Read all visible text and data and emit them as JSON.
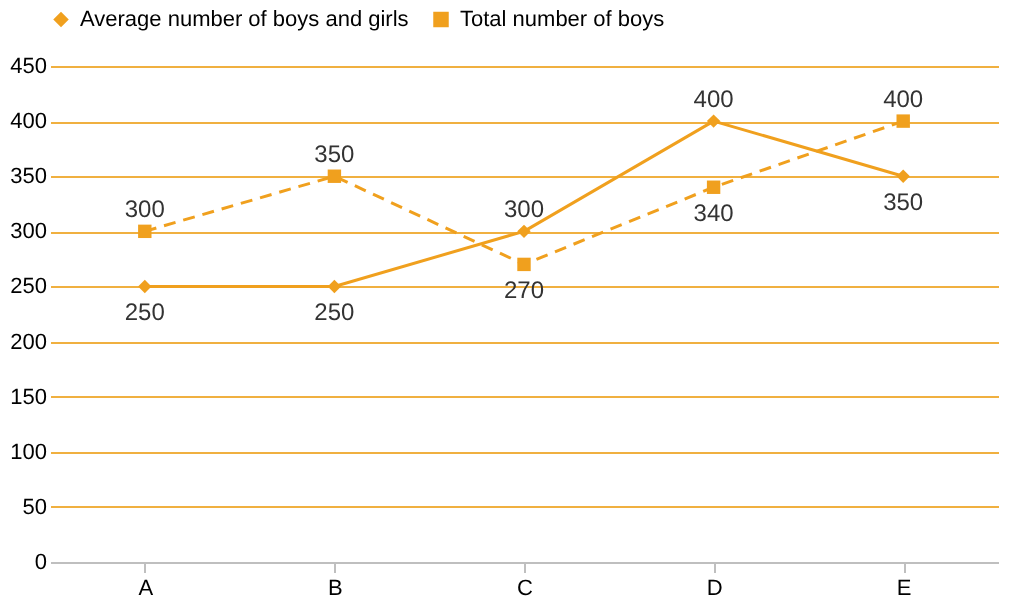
{
  "chart_data": {
    "type": "line",
    "categories": [
      "A",
      "B",
      "C",
      "D",
      "E"
    ],
    "series": [
      {
        "name": "Average number of boys and girls",
        "color": "#f0a01e",
        "values": [
          250,
          250,
          300,
          400,
          350
        ],
        "marker": "diamond",
        "line_style": "solid"
      },
      {
        "name": "Total number of boys",
        "color": "#f0a01e",
        "values": [
          300,
          350,
          270,
          340,
          400
        ],
        "marker": "square",
        "line_style": "dashed"
      }
    ],
    "ylim": [
      0,
      450
    ],
    "yticks": [
      0,
      50,
      100,
      150,
      200,
      250,
      300,
      350,
      400,
      450
    ],
    "grid": "y",
    "legend": "top",
    "data_labels": true
  }
}
